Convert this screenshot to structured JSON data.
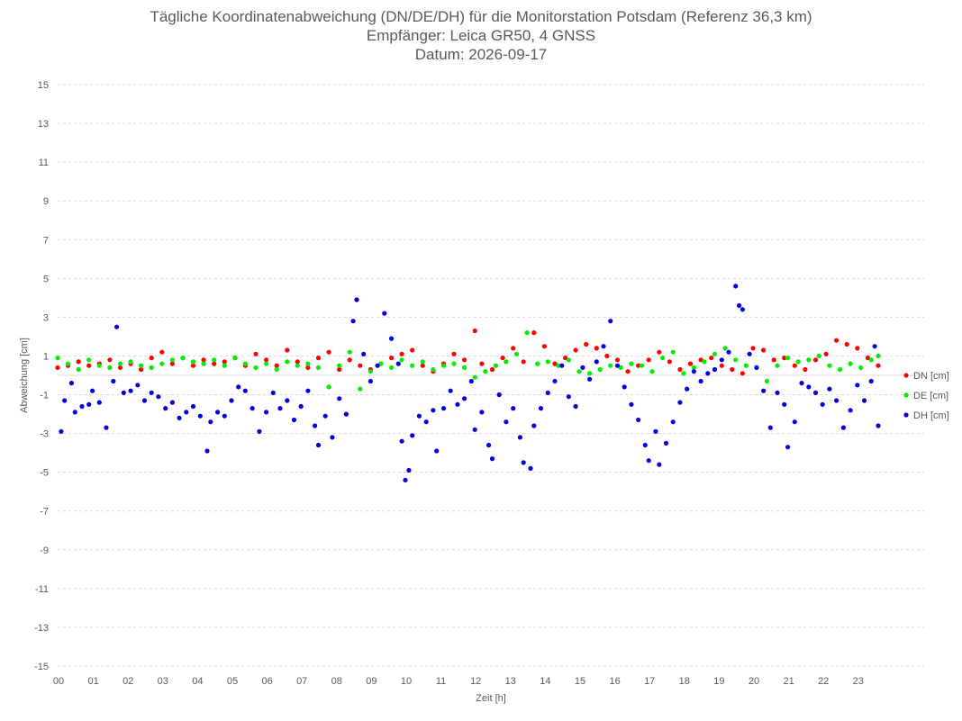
{
  "chart_data": {
    "type": "scatter",
    "title_lines": [
      "Tägliche Koordinatenabweichung (DN/DE/DH) für die Monitorstation Potsdam (Referenz 36,3 km)",
      "Empfänger: Leica GR50, 4 GNSS",
      "Datum: 2026-09-17"
    ],
    "xlabel": "Zeit [h]",
    "ylabel": "Abweichung [cm]",
    "xlim": [
      0,
      24
    ],
    "ylim": [
      -15,
      15
    ],
    "x_tick_labels": [
      "00",
      "01",
      "02",
      "03",
      "04",
      "05",
      "06",
      "07",
      "08",
      "09",
      "10",
      "11",
      "12",
      "13",
      "14",
      "15",
      "16",
      "17",
      "18",
      "19",
      "20",
      "21",
      "22",
      "23"
    ],
    "y_tick_labels": [
      "15",
      "13",
      "11",
      "9",
      "7",
      "5",
      "3",
      "1",
      "-1",
      "-3",
      "-5",
      "-7",
      "-9",
      "-11",
      "-13",
      "-15"
    ],
    "grid": "horizontal dashed",
    "legend_position": "right",
    "series": [
      {
        "name": "DN [cm]",
        "color": "#ff0000",
        "points": [
          [
            0.0,
            0.4
          ],
          [
            0.3,
            0.5
          ],
          [
            0.6,
            0.7
          ],
          [
            0.9,
            0.5
          ],
          [
            1.2,
            0.6
          ],
          [
            1.5,
            0.8
          ],
          [
            1.8,
            0.4
          ],
          [
            2.1,
            0.6
          ],
          [
            2.4,
            0.3
          ],
          [
            2.7,
            0.9
          ],
          [
            3.0,
            1.2
          ],
          [
            3.3,
            0.6
          ],
          [
            3.6,
            0.9
          ],
          [
            3.9,
            0.5
          ],
          [
            4.2,
            0.8
          ],
          [
            4.5,
            0.6
          ],
          [
            4.8,
            0.7
          ],
          [
            5.1,
            0.9
          ],
          [
            5.4,
            0.5
          ],
          [
            5.7,
            1.1
          ],
          [
            6.0,
            0.8
          ],
          [
            6.3,
            0.5
          ],
          [
            6.6,
            1.3
          ],
          [
            6.9,
            0.7
          ],
          [
            7.2,
            0.4
          ],
          [
            7.5,
            0.9
          ],
          [
            7.8,
            1.2
          ],
          [
            8.1,
            0.3
          ],
          [
            8.4,
            0.8
          ],
          [
            8.7,
            0.5
          ],
          [
            9.0,
            0.3
          ],
          [
            9.3,
            0.6
          ],
          [
            9.6,
            0.9
          ],
          [
            9.9,
            1.1
          ],
          [
            10.2,
            1.3
          ],
          [
            10.5,
            0.5
          ],
          [
            10.8,
            0.2
          ],
          [
            11.1,
            0.6
          ],
          [
            11.4,
            1.1
          ],
          [
            11.7,
            0.8
          ],
          [
            12.0,
            2.3
          ],
          [
            12.2,
            0.6
          ],
          [
            12.5,
            0.3
          ],
          [
            12.8,
            0.9
          ],
          [
            13.1,
            1.4
          ],
          [
            13.4,
            0.7
          ],
          [
            13.7,
            2.2
          ],
          [
            14.0,
            1.5
          ],
          [
            14.3,
            0.6
          ],
          [
            14.6,
            0.9
          ],
          [
            14.9,
            1.3
          ],
          [
            15.2,
            1.6
          ],
          [
            15.5,
            1.4
          ],
          [
            15.8,
            1.0
          ],
          [
            16.1,
            0.8
          ],
          [
            16.4,
            0.2
          ],
          [
            16.7,
            0.5
          ],
          [
            17.0,
            0.8
          ],
          [
            17.3,
            1.2
          ],
          [
            17.6,
            0.7
          ],
          [
            17.9,
            0.3
          ],
          [
            18.2,
            0.6
          ],
          [
            18.5,
            0.8
          ],
          [
            18.8,
            0.9
          ],
          [
            19.1,
            0.5
          ],
          [
            19.4,
            0.3
          ],
          [
            19.7,
            0.1
          ],
          [
            20.0,
            1.4
          ],
          [
            20.3,
            1.3
          ],
          [
            20.6,
            0.8
          ],
          [
            20.9,
            0.9
          ],
          [
            21.2,
            0.5
          ],
          [
            21.5,
            0.3
          ],
          [
            21.8,
            0.8
          ],
          [
            22.1,
            1.1
          ],
          [
            22.4,
            1.8
          ],
          [
            22.7,
            1.6
          ],
          [
            23.0,
            1.4
          ],
          [
            23.3,
            0.9
          ],
          [
            23.6,
            0.5
          ]
        ]
      },
      {
        "name": "DE [cm]",
        "color": "#00ee00",
        "points": [
          [
            0.0,
            0.9
          ],
          [
            0.3,
            0.6
          ],
          [
            0.6,
            0.3
          ],
          [
            0.9,
            0.8
          ],
          [
            1.2,
            0.5
          ],
          [
            1.5,
            0.4
          ],
          [
            1.8,
            0.6
          ],
          [
            2.1,
            0.7
          ],
          [
            2.4,
            0.5
          ],
          [
            2.7,
            0.4
          ],
          [
            3.0,
            0.6
          ],
          [
            3.3,
            0.8
          ],
          [
            3.6,
            0.9
          ],
          [
            3.9,
            0.7
          ],
          [
            4.2,
            0.6
          ],
          [
            4.5,
            0.8
          ],
          [
            4.8,
            0.5
          ],
          [
            5.1,
            0.9
          ],
          [
            5.4,
            0.6
          ],
          [
            5.7,
            0.4
          ],
          [
            6.0,
            0.6
          ],
          [
            6.3,
            0.3
          ],
          [
            6.6,
            0.7
          ],
          [
            6.9,
            0.5
          ],
          [
            7.2,
            0.6
          ],
          [
            7.5,
            0.4
          ],
          [
            7.8,
            -0.6
          ],
          [
            8.1,
            0.5
          ],
          [
            8.4,
            1.2
          ],
          [
            8.7,
            -0.7
          ],
          [
            9.0,
            0.2
          ],
          [
            9.3,
            0.6
          ],
          [
            9.6,
            0.4
          ],
          [
            9.9,
            0.8
          ],
          [
            10.2,
            0.5
          ],
          [
            10.5,
            0.7
          ],
          [
            10.8,
            0.3
          ],
          [
            11.1,
            0.5
          ],
          [
            11.4,
            0.6
          ],
          [
            11.7,
            0.4
          ],
          [
            12.0,
            -0.1
          ],
          [
            12.3,
            0.2
          ],
          [
            12.6,
            0.5
          ],
          [
            12.9,
            0.7
          ],
          [
            13.2,
            1.1
          ],
          [
            13.5,
            2.2
          ],
          [
            13.8,
            0.6
          ],
          [
            14.1,
            0.7
          ],
          [
            14.4,
            0.5
          ],
          [
            14.7,
            0.8
          ],
          [
            15.0,
            0.2
          ],
          [
            15.3,
            0.1
          ],
          [
            15.6,
            0.3
          ],
          [
            15.9,
            0.5
          ],
          [
            16.2,
            0.4
          ],
          [
            16.5,
            0.6
          ],
          [
            16.8,
            0.5
          ],
          [
            17.1,
            0.2
          ],
          [
            17.4,
            0.9
          ],
          [
            17.7,
            1.2
          ],
          [
            18.0,
            0.1
          ],
          [
            18.3,
            0.4
          ],
          [
            18.6,
            0.7
          ],
          [
            18.9,
            1.1
          ],
          [
            19.2,
            1.4
          ],
          [
            19.5,
            0.8
          ],
          [
            19.8,
            0.5
          ],
          [
            20.1,
            0.4
          ],
          [
            20.4,
            -0.3
          ],
          [
            20.7,
            0.5
          ],
          [
            21.0,
            0.9
          ],
          [
            21.3,
            0.7
          ],
          [
            21.6,
            0.8
          ],
          [
            21.9,
            1.0
          ],
          [
            22.2,
            0.5
          ],
          [
            22.5,
            0.3
          ],
          [
            22.8,
            0.6
          ],
          [
            23.1,
            0.4
          ],
          [
            23.4,
            0.8
          ],
          [
            23.6,
            1.0
          ]
        ]
      },
      {
        "name": "DH [cm]",
        "color": "#0000dd",
        "points": [
          [
            0.1,
            -2.9
          ],
          [
            0.2,
            -1.3
          ],
          [
            0.4,
            -0.4
          ],
          [
            0.5,
            -1.9
          ],
          [
            0.7,
            -1.6
          ],
          [
            0.9,
            -1.5
          ],
          [
            1.0,
            -0.8
          ],
          [
            1.2,
            -1.4
          ],
          [
            1.4,
            -2.7
          ],
          [
            1.6,
            -0.3
          ],
          [
            1.7,
            2.5
          ],
          [
            1.9,
            -0.9
          ],
          [
            2.1,
            -0.8
          ],
          [
            2.3,
            -0.5
          ],
          [
            2.5,
            -1.3
          ],
          [
            2.7,
            -0.9
          ],
          [
            2.9,
            -1.1
          ],
          [
            3.1,
            -1.7
          ],
          [
            3.3,
            -1.4
          ],
          [
            3.5,
            -2.2
          ],
          [
            3.7,
            -1.9
          ],
          [
            3.9,
            -1.6
          ],
          [
            4.1,
            -2.1
          ],
          [
            4.3,
            -3.9
          ],
          [
            4.4,
            -2.4
          ],
          [
            4.6,
            -1.9
          ],
          [
            4.8,
            -2.1
          ],
          [
            5.0,
            -1.3
          ],
          [
            5.2,
            -0.6
          ],
          [
            5.4,
            -0.8
          ],
          [
            5.6,
            -1.7
          ],
          [
            5.8,
            -2.9
          ],
          [
            6.0,
            -1.9
          ],
          [
            6.2,
            -0.9
          ],
          [
            6.4,
            -1.7
          ],
          [
            6.6,
            -1.3
          ],
          [
            6.8,
            -2.3
          ],
          [
            7.0,
            -1.6
          ],
          [
            7.2,
            -0.8
          ],
          [
            7.4,
            -2.6
          ],
          [
            7.5,
            -3.6
          ],
          [
            7.7,
            -2.1
          ],
          [
            7.9,
            -3.2
          ],
          [
            8.1,
            -1.2
          ],
          [
            8.3,
            -2.0
          ],
          [
            8.5,
            2.8
          ],
          [
            8.6,
            3.9
          ],
          [
            8.8,
            1.1
          ],
          [
            9.0,
            -0.3
          ],
          [
            9.2,
            0.5
          ],
          [
            9.4,
            3.2
          ],
          [
            9.6,
            1.9
          ],
          [
            9.8,
            0.6
          ],
          [
            9.9,
            -3.4
          ],
          [
            10.0,
            -5.4
          ],
          [
            10.1,
            -4.9
          ],
          [
            10.2,
            -3.1
          ],
          [
            10.4,
            -2.1
          ],
          [
            10.6,
            -2.4
          ],
          [
            10.8,
            -1.8
          ],
          [
            10.9,
            -3.9
          ],
          [
            11.1,
            -1.7
          ],
          [
            11.3,
            -0.8
          ],
          [
            11.5,
            -1.5
          ],
          [
            11.7,
            -1.2
          ],
          [
            11.9,
            -0.3
          ],
          [
            12.0,
            -2.8
          ],
          [
            12.2,
            -1.9
          ],
          [
            12.4,
            -3.6
          ],
          [
            12.5,
            -4.3
          ],
          [
            12.7,
            -1.0
          ],
          [
            12.9,
            -2.4
          ],
          [
            13.1,
            -1.7
          ],
          [
            13.3,
            -3.2
          ],
          [
            13.4,
            -4.5
          ],
          [
            13.6,
            -4.8
          ],
          [
            13.7,
            -2.6
          ],
          [
            13.9,
            -1.7
          ],
          [
            14.1,
            -0.9
          ],
          [
            14.3,
            -0.3
          ],
          [
            14.5,
            0.5
          ],
          [
            14.7,
            -1.1
          ],
          [
            14.9,
            -1.6
          ],
          [
            15.1,
            0.4
          ],
          [
            15.3,
            -0.2
          ],
          [
            15.5,
            0.7
          ],
          [
            15.7,
            1.5
          ],
          [
            15.9,
            2.8
          ],
          [
            16.1,
            0.5
          ],
          [
            16.3,
            -0.6
          ],
          [
            16.5,
            -1.5
          ],
          [
            16.7,
            -2.3
          ],
          [
            16.9,
            -3.6
          ],
          [
            17.0,
            -4.4
          ],
          [
            17.2,
            -2.9
          ],
          [
            17.3,
            -4.6
          ],
          [
            17.5,
            -3.5
          ],
          [
            17.7,
            -2.4
          ],
          [
            17.9,
            -1.4
          ],
          [
            18.1,
            -0.7
          ],
          [
            18.3,
            0.2
          ],
          [
            18.5,
            -0.3
          ],
          [
            18.7,
            0.1
          ],
          [
            18.9,
            0.3
          ],
          [
            19.1,
            0.8
          ],
          [
            19.3,
            1.2
          ],
          [
            19.5,
            4.6
          ],
          [
            19.6,
            3.6
          ],
          [
            19.7,
            3.4
          ],
          [
            19.9,
            1.1
          ],
          [
            20.1,
            0.4
          ],
          [
            20.3,
            -0.8
          ],
          [
            20.5,
            -2.7
          ],
          [
            20.7,
            -0.9
          ],
          [
            20.9,
            -1.5
          ],
          [
            21.0,
            -3.7
          ],
          [
            21.2,
            -2.4
          ],
          [
            21.4,
            -0.4
          ],
          [
            21.6,
            -0.6
          ],
          [
            21.8,
            -0.9
          ],
          [
            22.0,
            -1.5
          ],
          [
            22.2,
            -0.7
          ],
          [
            22.4,
            -1.3
          ],
          [
            22.6,
            -2.7
          ],
          [
            22.8,
            -1.8
          ],
          [
            23.0,
            -0.5
          ],
          [
            23.2,
            -1.3
          ],
          [
            23.4,
            -0.3
          ],
          [
            23.5,
            1.5
          ],
          [
            23.6,
            -2.6
          ]
        ]
      }
    ]
  }
}
